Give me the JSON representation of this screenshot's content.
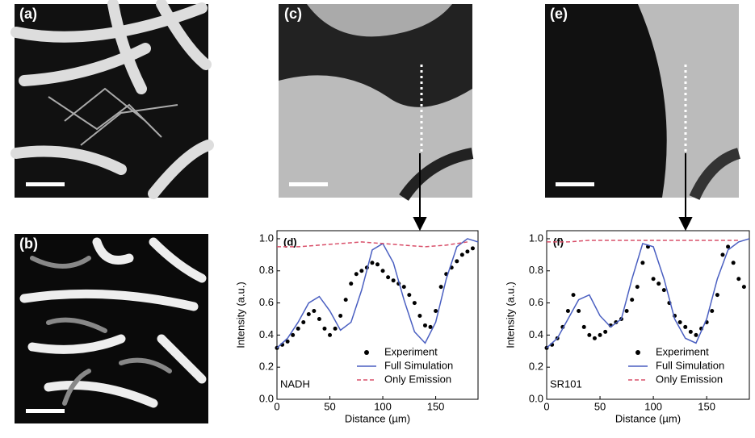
{
  "panels": [
    {
      "label": "(a)"
    },
    {
      "label": "(b)"
    },
    {
      "label": "(c)"
    },
    {
      "label": "(e)"
    }
  ],
  "chart_data": [
    {
      "type": "line",
      "panel_label": "(d)",
      "annotation": "NADH",
      "x_label": "Distance (µm)",
      "y_label": "Intensity (a.u.)",
      "xlim": [
        0,
        190
      ],
      "xticks": [
        0,
        50,
        100,
        150
      ],
      "ylim": [
        0,
        1.05
      ],
      "yticks": [
        {
          "value": 0,
          "label": "0.0"
        },
        {
          "value": 0.2,
          "label": "0.2"
        },
        {
          "value": 0.4,
          "label": "0.4"
        },
        {
          "value": 0.6,
          "label": "0.6"
        },
        {
          "value": 0.8,
          "label": "0.8"
        },
        {
          "value": 1,
          "label": "1.0"
        }
      ],
      "legend": "lower right",
      "series": [
        {
          "name": "Experiment",
          "style": "markers",
          "color": "#000000",
          "x": [
            0,
            5,
            10,
            15,
            20,
            25,
            30,
            35,
            40,
            45,
            50,
            55,
            60,
            65,
            70,
            75,
            80,
            85,
            90,
            95,
            100,
            105,
            110,
            115,
            120,
            125,
            130,
            135,
            140,
            145,
            150,
            155,
            160,
            165,
            170,
            175,
            180,
            185
          ],
          "values": [
            0.32,
            0.34,
            0.36,
            0.4,
            0.44,
            0.48,
            0.53,
            0.55,
            0.5,
            0.44,
            0.4,
            0.44,
            0.52,
            0.62,
            0.72,
            0.78,
            0.8,
            0.82,
            0.85,
            0.84,
            0.8,
            0.76,
            0.74,
            0.72,
            0.7,
            0.65,
            0.6,
            0.52,
            0.46,
            0.45,
            0.55,
            0.7,
            0.78,
            0.82,
            0.86,
            0.9,
            0.92,
            0.94
          ]
        },
        {
          "name": "Full Simulation",
          "style": "line",
          "color": "#4a5fc1",
          "x": [
            0,
            10,
            20,
            30,
            40,
            50,
            60,
            70,
            80,
            90,
            100,
            110,
            120,
            130,
            140,
            150,
            160,
            170,
            180,
            190
          ],
          "values": [
            0.32,
            0.38,
            0.48,
            0.6,
            0.64,
            0.55,
            0.43,
            0.48,
            0.68,
            0.93,
            0.97,
            0.85,
            0.62,
            0.42,
            0.35,
            0.48,
            0.75,
            0.95,
            1.0,
            0.98
          ]
        },
        {
          "name": "Only Emission",
          "style": "dashed",
          "color": "#d9506a",
          "x": [
            0,
            20,
            40,
            60,
            80,
            100,
            120,
            140,
            160,
            180
          ],
          "values": [
            0.95,
            0.95,
            0.96,
            0.97,
            0.98,
            0.97,
            0.96,
            0.95,
            0.96,
            0.98
          ]
        }
      ]
    },
    {
      "type": "line",
      "panel_label": "(f)",
      "annotation": "SR101",
      "x_label": "Distance (µm)",
      "y_label": "Intensity (a.u.)",
      "xlim": [
        0,
        190
      ],
      "xticks": [
        0,
        50,
        100,
        150
      ],
      "ylim": [
        0,
        1.05
      ],
      "yticks": [
        {
          "value": 0,
          "label": "0.0"
        },
        {
          "value": 0.2,
          "label": "0.2"
        },
        {
          "value": 0.4,
          "label": "0.4"
        },
        {
          "value": 0.6,
          "label": "0.6"
        },
        {
          "value": 0.8,
          "label": "0.8"
        },
        {
          "value": 1,
          "label": "1.0"
        }
      ],
      "legend": "lower right",
      "series": [
        {
          "name": "Experiment",
          "style": "markers",
          "color": "#000000",
          "x": [
            0,
            5,
            10,
            15,
            20,
            25,
            30,
            35,
            40,
            45,
            50,
            55,
            60,
            65,
            70,
            75,
            80,
            85,
            90,
            95,
            100,
            105,
            110,
            115,
            120,
            125,
            130,
            135,
            140,
            145,
            150,
            155,
            160,
            165,
            170,
            175,
            180,
            185
          ],
          "values": [
            0.32,
            0.34,
            0.38,
            0.45,
            0.55,
            0.65,
            0.55,
            0.45,
            0.4,
            0.38,
            0.4,
            0.42,
            0.46,
            0.48,
            0.5,
            0.55,
            0.62,
            0.7,
            0.85,
            0.95,
            0.75,
            0.72,
            0.68,
            0.6,
            0.52,
            0.48,
            0.45,
            0.42,
            0.4,
            0.44,
            0.48,
            0.55,
            0.65,
            0.9,
            0.95,
            0.85,
            0.75,
            0.7
          ]
        },
        {
          "name": "Full Simulation",
          "style": "line",
          "color": "#4a5fc1",
          "x": [
            0,
            10,
            20,
            30,
            40,
            50,
            60,
            70,
            80,
            90,
            100,
            110,
            120,
            130,
            140,
            150,
            160,
            170,
            180,
            190
          ],
          "values": [
            0.32,
            0.38,
            0.5,
            0.62,
            0.65,
            0.52,
            0.45,
            0.5,
            0.75,
            0.97,
            0.95,
            0.75,
            0.5,
            0.38,
            0.35,
            0.5,
            0.75,
            0.93,
            0.98,
            1.0
          ]
        },
        {
          "name": "Only Emission",
          "style": "dashed",
          "color": "#d9506a",
          "x": [
            0,
            20,
            40,
            60,
            80,
            100,
            120,
            140,
            160,
            180
          ],
          "values": [
            0.98,
            0.98,
            0.99,
            0.99,
            0.99,
            0.99,
            0.99,
            0.99,
            0.99,
            0.99
          ]
        }
      ]
    }
  ]
}
